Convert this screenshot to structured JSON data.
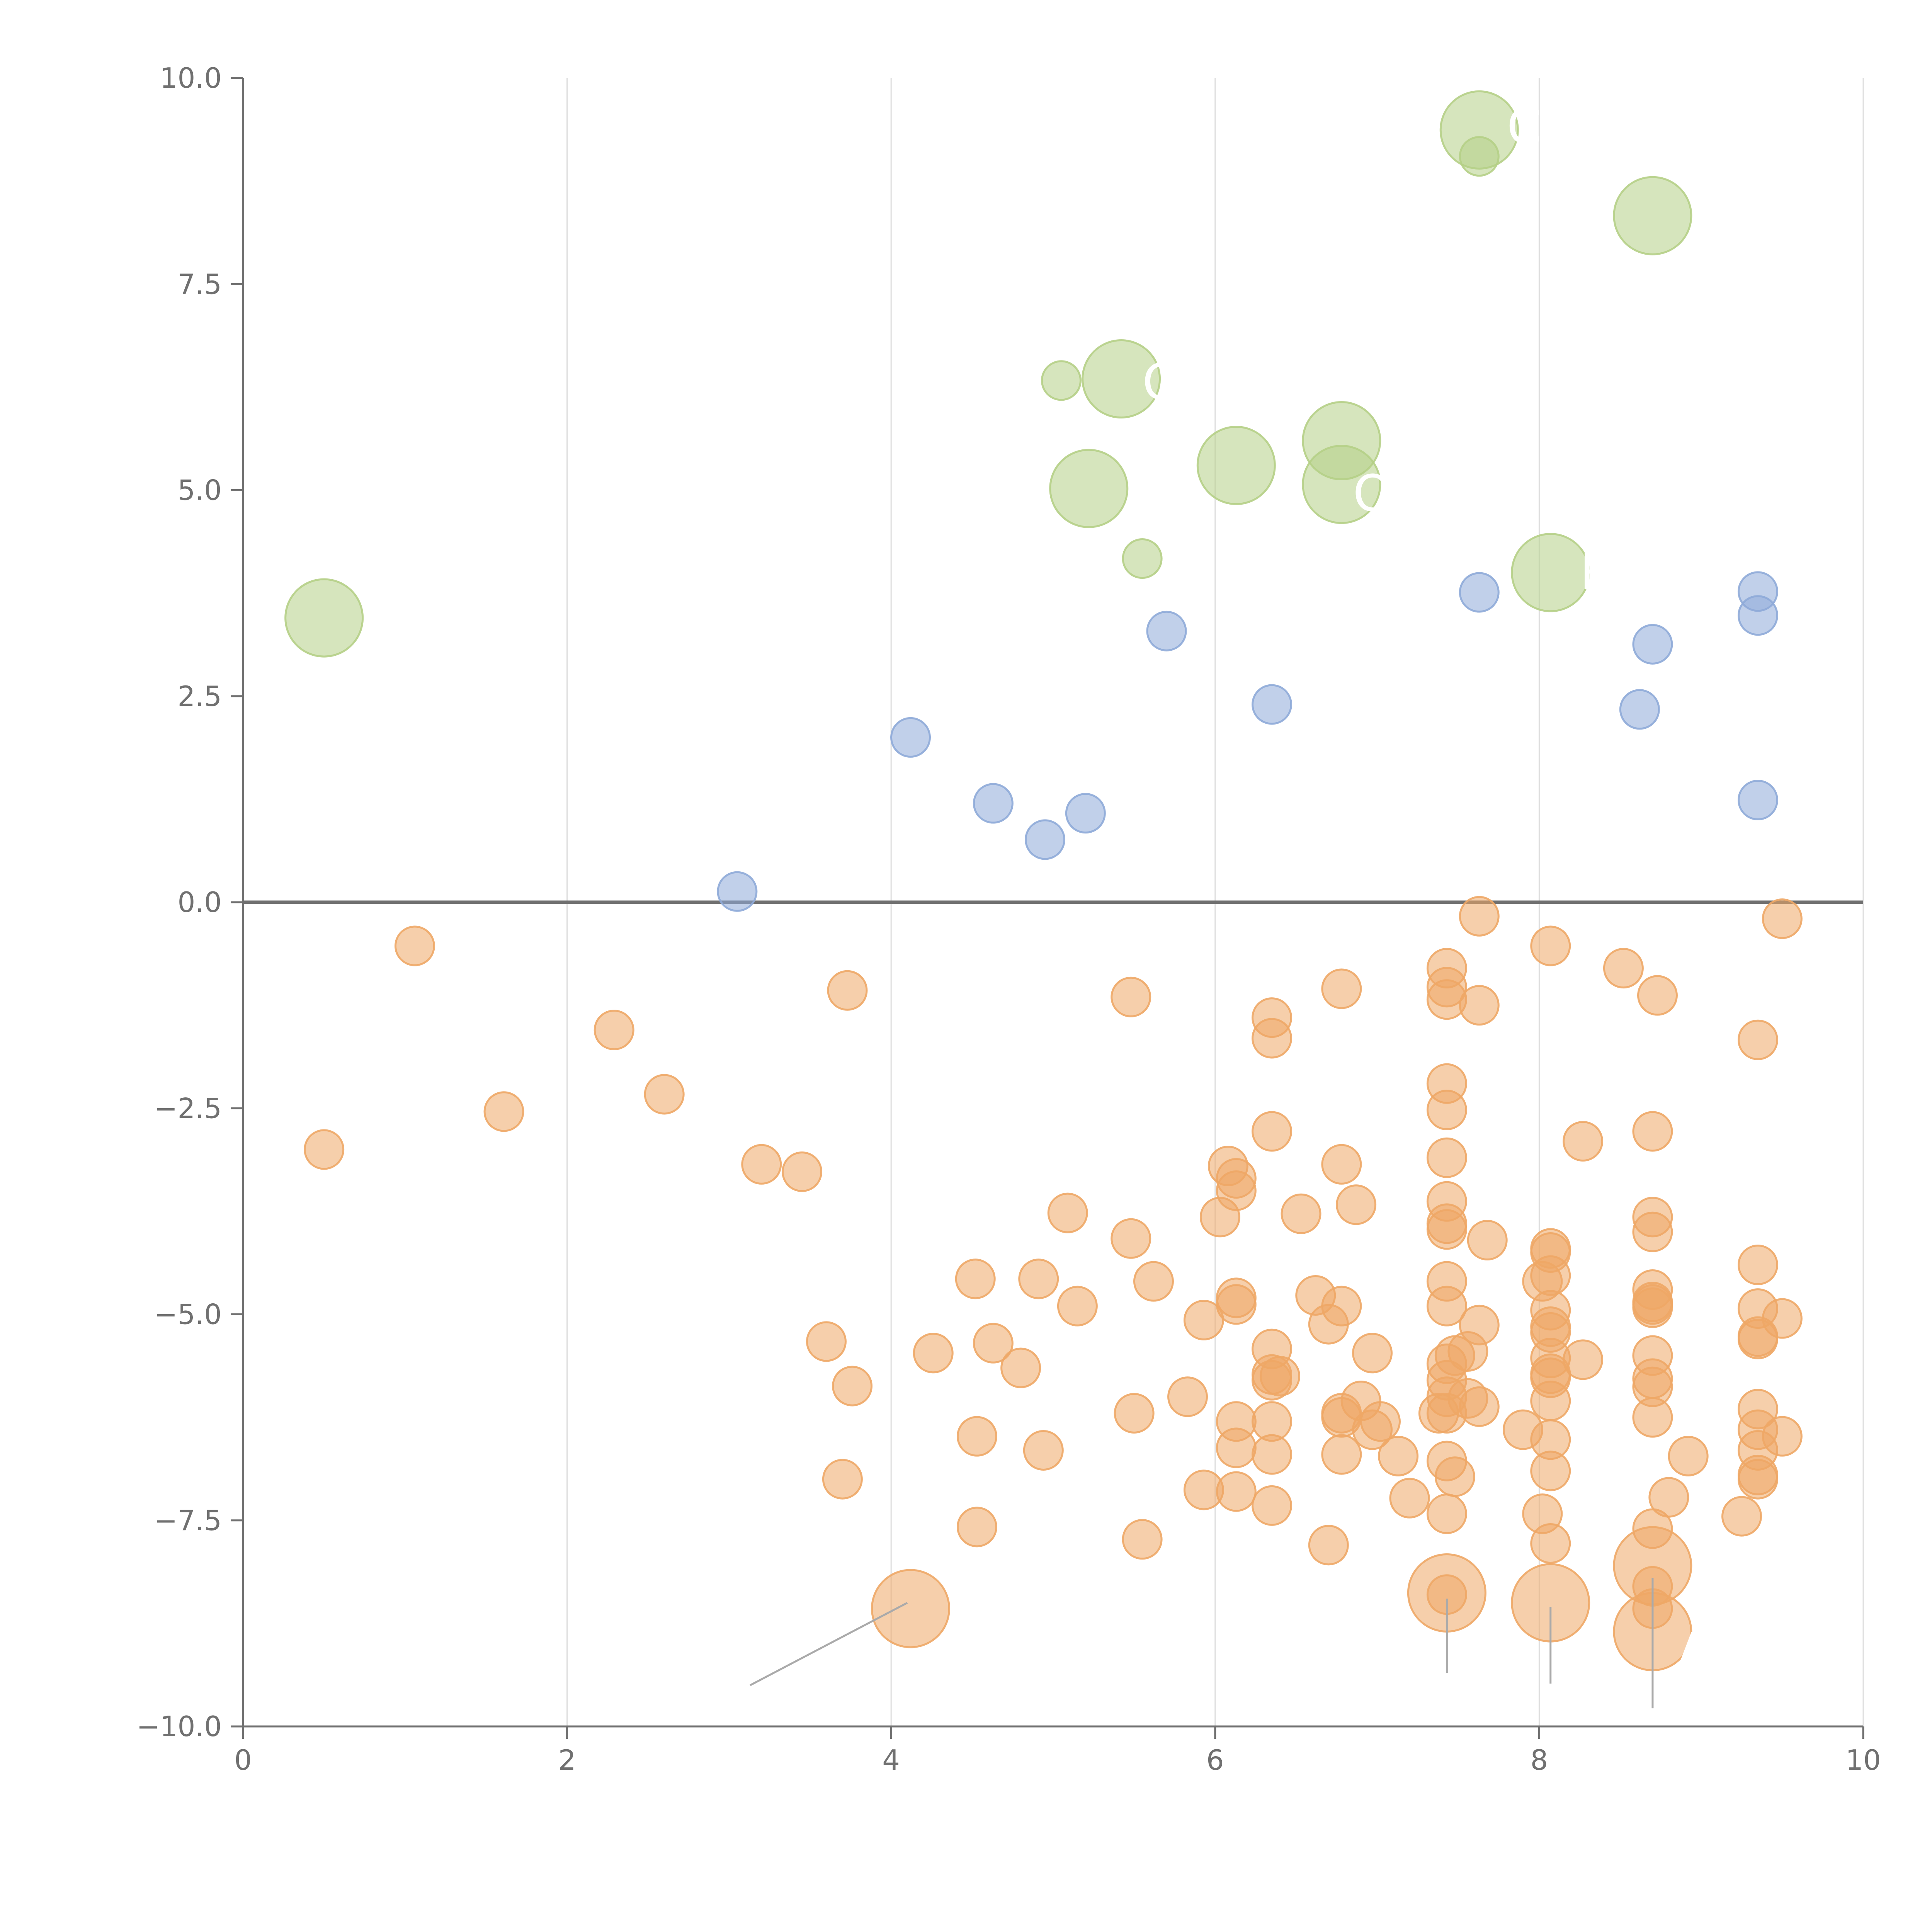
{
  "chart_data": {
    "type": "scatter",
    "title": "",
    "xlabel": "",
    "ylabel": "",
    "xlim": [
      0,
      10
    ],
    "ylim": [
      -10,
      10
    ],
    "x_ticks": [
      "0",
      "2",
      "4",
      "6",
      "8",
      "10"
    ],
    "y_ticks": [
      "10.0",
      "7.5",
      "5.0",
      "2.5",
      "0.0",
      "−2.5",
      "−5.0",
      "−7.5",
      "−10.0"
    ],
    "x_tick_values": [
      0,
      2,
      4,
      6,
      8,
      10
    ],
    "y_tick_values": [
      10,
      7.5,
      5,
      2.5,
      0,
      -2.5,
      -5,
      -7.5,
      -10
    ],
    "grid": "vertical",
    "zero_line": true,
    "colors": {
      "green": "#b5cf86",
      "blue": "#8eaad8",
      "orange": "#eea766",
      "axis": "#707070",
      "grid": "#dddddd"
    },
    "series": [
      {
        "color": "green",
        "points": [
          [
            0.5,
            3.45,
            2
          ],
          [
            5.05,
            6.33,
            1
          ],
          [
            5.42,
            6.35,
            2
          ],
          [
            5.55,
            4.17,
            1
          ],
          [
            5.22,
            5.02,
            2
          ],
          [
            6.13,
            5.3,
            2
          ],
          [
            6.78,
            5.6,
            2
          ],
          [
            6.78,
            5.07,
            2
          ],
          [
            7.63,
            9.37,
            2
          ],
          [
            7.63,
            9.05,
            1
          ],
          [
            8.7,
            8.33,
            2
          ],
          [
            8.07,
            4.0,
            2
          ]
        ]
      },
      {
        "color": "blue",
        "points": [
          [
            3.05,
            0.13,
            1
          ],
          [
            4.12,
            2.0,
            1
          ],
          [
            4.63,
            1.2,
            1
          ],
          [
            4.95,
            0.76,
            1
          ],
          [
            5.2,
            1.08,
            1
          ],
          [
            5.7,
            3.29,
            1
          ],
          [
            6.35,
            2.4,
            1
          ],
          [
            7.63,
            3.76,
            1
          ],
          [
            8.62,
            2.34,
            1
          ],
          [
            8.7,
            3.13,
            1
          ],
          [
            9.35,
            3.77,
            1
          ],
          [
            9.35,
            3.48,
            1
          ],
          [
            9.35,
            1.24,
            1
          ]
        ]
      },
      {
        "color": "orange",
        "points": [
          [
            0.5,
            -3.0,
            1
          ],
          [
            1.06,
            -0.53,
            1
          ],
          [
            1.61,
            -2.54,
            1
          ],
          [
            2.29,
            -1.55,
            1
          ],
          [
            2.6,
            -2.33,
            1
          ],
          [
            3.2,
            -3.18,
            1
          ],
          [
            3.45,
            -3.27,
            1
          ],
          [
            3.6,
            -5.33,
            1
          ],
          [
            3.7,
            -7.0,
            1
          ],
          [
            3.73,
            -1.07,
            1
          ],
          [
            3.76,
            -5.87,
            1
          ],
          [
            4.12,
            -8.57,
            2
          ],
          [
            4.26,
            -5.47,
            1
          ],
          [
            4.52,
            -4.57,
            1
          ],
          [
            4.53,
            -6.48,
            1
          ],
          [
            4.53,
            -7.58,
            1
          ],
          [
            4.63,
            -5.35,
            1
          ],
          [
            4.8,
            -5.65,
            1
          ],
          [
            4.91,
            -4.57,
            1
          ],
          [
            4.94,
            -6.65,
            1
          ],
          [
            5.09,
            -3.77,
            1
          ],
          [
            5.15,
            -4.9,
            1
          ],
          [
            5.48,
            -1.15,
            1
          ],
          [
            5.48,
            -4.08,
            1
          ],
          [
            5.5,
            -6.2,
            1
          ],
          [
            5.55,
            -7.73,
            1
          ],
          [
            5.62,
            -4.6,
            1
          ],
          [
            5.83,
            -6.0,
            1
          ],
          [
            5.93,
            -5.07,
            1
          ],
          [
            5.93,
            -7.13,
            1
          ],
          [
            6.03,
            -3.82,
            1
          ],
          [
            6.08,
            -3.2,
            1
          ],
          [
            6.13,
            -3.35,
            1
          ],
          [
            6.13,
            -3.5,
            1
          ],
          [
            6.13,
            -4.8,
            1
          ],
          [
            6.13,
            -4.88,
            1
          ],
          [
            6.13,
            -6.3,
            1
          ],
          [
            6.13,
            -6.62,
            1
          ],
          [
            6.13,
            -7.15,
            1
          ],
          [
            6.35,
            -1.4,
            1
          ],
          [
            6.35,
            -1.65,
            1
          ],
          [
            6.35,
            -2.78,
            1
          ],
          [
            6.35,
            -5.42,
            1
          ],
          [
            6.35,
            -5.73,
            1
          ],
          [
            6.35,
            -5.8,
            1
          ],
          [
            6.35,
            -6.3,
            1
          ],
          [
            6.35,
            -6.7,
            1
          ],
          [
            6.35,
            -7.32,
            1
          ],
          [
            6.4,
            -5.75,
            1
          ],
          [
            6.53,
            -3.78,
            1
          ],
          [
            6.62,
            -4.77,
            1
          ],
          [
            6.7,
            -5.12,
            1
          ],
          [
            6.7,
            -7.8,
            1
          ],
          [
            6.78,
            -1.05,
            1
          ],
          [
            6.78,
            -3.18,
            1
          ],
          [
            6.78,
            -4.9,
            1
          ],
          [
            6.78,
            -6.2,
            1
          ],
          [
            6.78,
            -6.25,
            1
          ],
          [
            6.78,
            -6.7,
            1
          ],
          [
            6.87,
            -3.67,
            1
          ],
          [
            6.9,
            -6.05,
            1
          ],
          [
            6.97,
            -5.47,
            1
          ],
          [
            6.97,
            -6.4,
            1
          ],
          [
            7.02,
            -6.3,
            1
          ],
          [
            7.13,
            -6.72,
            1
          ],
          [
            7.2,
            -7.23,
            1
          ],
          [
            7.38,
            -6.2,
            1
          ],
          [
            7.43,
            -0.8,
            1
          ],
          [
            7.43,
            -1.03,
            1
          ],
          [
            7.43,
            -1.18,
            1
          ],
          [
            7.43,
            -2.2,
            1
          ],
          [
            7.43,
            -2.52,
            1
          ],
          [
            7.43,
            -3.1,
            1
          ],
          [
            7.43,
            -3.63,
            1
          ],
          [
            7.43,
            -3.9,
            1
          ],
          [
            7.43,
            -3.97,
            1
          ],
          [
            7.43,
            -4.6,
            1
          ],
          [
            7.43,
            -4.9,
            1
          ],
          [
            7.43,
            -5.6,
            1
          ],
          [
            7.43,
            -5.8,
            1
          ],
          [
            7.43,
            -6.0,
            1
          ],
          [
            7.43,
            -6.2,
            1
          ],
          [
            7.43,
            -6.78,
            1
          ],
          [
            7.43,
            -7.42,
            1
          ],
          [
            7.43,
            -8.38,
            2
          ],
          [
            7.43,
            -8.4,
            1
          ],
          [
            7.48,
            -5.5,
            1
          ],
          [
            7.48,
            -6.97,
            1
          ],
          [
            7.56,
            -5.45,
            1
          ],
          [
            7.56,
            -6.02,
            1
          ],
          [
            7.63,
            -0.17,
            1
          ],
          [
            7.63,
            -1.25,
            1
          ],
          [
            7.63,
            -5.13,
            1
          ],
          [
            7.63,
            -6.12,
            1
          ],
          [
            7.68,
            -4.1,
            1
          ],
          [
            7.9,
            -6.4,
            1
          ],
          [
            8.02,
            -4.6,
            1
          ],
          [
            8.02,
            -7.42,
            1
          ],
          [
            8.07,
            -0.53,
            1
          ],
          [
            8.07,
            -4.2,
            1
          ],
          [
            8.07,
            -4.25,
            1
          ],
          [
            8.07,
            -4.53,
            1
          ],
          [
            8.07,
            -4.95,
            1
          ],
          [
            8.07,
            -5.15,
            1
          ],
          [
            8.07,
            -5.22,
            1
          ],
          [
            8.07,
            -5.53,
            1
          ],
          [
            8.07,
            -5.72,
            1
          ],
          [
            8.07,
            -5.77,
            1
          ],
          [
            8.07,
            -6.05,
            1
          ],
          [
            8.07,
            -6.52,
            1
          ],
          [
            8.07,
            -6.9,
            1
          ],
          [
            8.07,
            -7.78,
            1
          ],
          [
            8.07,
            -8.5,
            2
          ],
          [
            8.27,
            -2.9,
            1
          ],
          [
            8.27,
            -5.55,
            1
          ],
          [
            8.52,
            -0.8,
            1
          ],
          [
            8.7,
            -2.78,
            1
          ],
          [
            8.7,
            -3.82,
            1
          ],
          [
            8.7,
            -4.0,
            1
          ],
          [
            8.7,
            -4.7,
            1
          ],
          [
            8.7,
            -4.85,
            1
          ],
          [
            8.7,
            -4.88,
            1
          ],
          [
            8.7,
            -4.92,
            1
          ],
          [
            8.7,
            -5.5,
            1
          ],
          [
            8.7,
            -5.78,
            1
          ],
          [
            8.7,
            -5.88,
            1
          ],
          [
            8.7,
            -6.25,
            1
          ],
          [
            8.7,
            -7.6,
            1
          ],
          [
            8.7,
            -8.05,
            2
          ],
          [
            8.7,
            -8.3,
            1
          ],
          [
            8.7,
            -8.57,
            1
          ],
          [
            8.7,
            -8.85,
            2
          ],
          [
            8.73,
            -1.13,
            1
          ],
          [
            8.8,
            -7.22,
            1
          ],
          [
            8.92,
            -6.72,
            1
          ],
          [
            9.25,
            -7.45,
            1
          ],
          [
            9.35,
            -1.67,
            1
          ],
          [
            9.35,
            -4.4,
            1
          ],
          [
            9.35,
            -4.93,
            1
          ],
          [
            9.35,
            -5.27,
            1
          ],
          [
            9.35,
            -5.3,
            1
          ],
          [
            9.35,
            -6.15,
            1
          ],
          [
            9.35,
            -6.4,
            1
          ],
          [
            9.35,
            -6.65,
            1
          ],
          [
            9.35,
            -6.95,
            1
          ],
          [
            9.35,
            -7.0,
            1
          ],
          [
            9.5,
            -0.2,
            1
          ],
          [
            9.5,
            -5.05,
            1
          ],
          [
            9.5,
            -6.48,
            1
          ]
        ]
      }
    ],
    "callouts": [
      {
        "text": "C",
        "x": 7.8,
        "y": 9.2
      },
      {
        "text": "C",
        "x": 5.55,
        "y": 6.1
      },
      {
        "text": "OX",
        "x": 6.85,
        "y": 4.75
      },
      {
        "text": "R",
        "x": 8.25,
        "y": 3.8
      },
      {
        "text": "A",
        "x": 8.85,
        "y": -9.3
      }
    ],
    "leader_lines": [
      [
        [
          4.1,
          -8.5
        ],
        [
          3.13,
          -9.5
        ]
      ],
      [
        [
          7.43,
          -8.45
        ],
        [
          7.43,
          -9.35
        ]
      ],
      [
        [
          8.07,
          -8.55
        ],
        [
          8.07,
          -9.48
        ]
      ],
      [
        [
          8.7,
          -8.2
        ],
        [
          8.7,
          -9.78
        ]
      ]
    ]
  }
}
